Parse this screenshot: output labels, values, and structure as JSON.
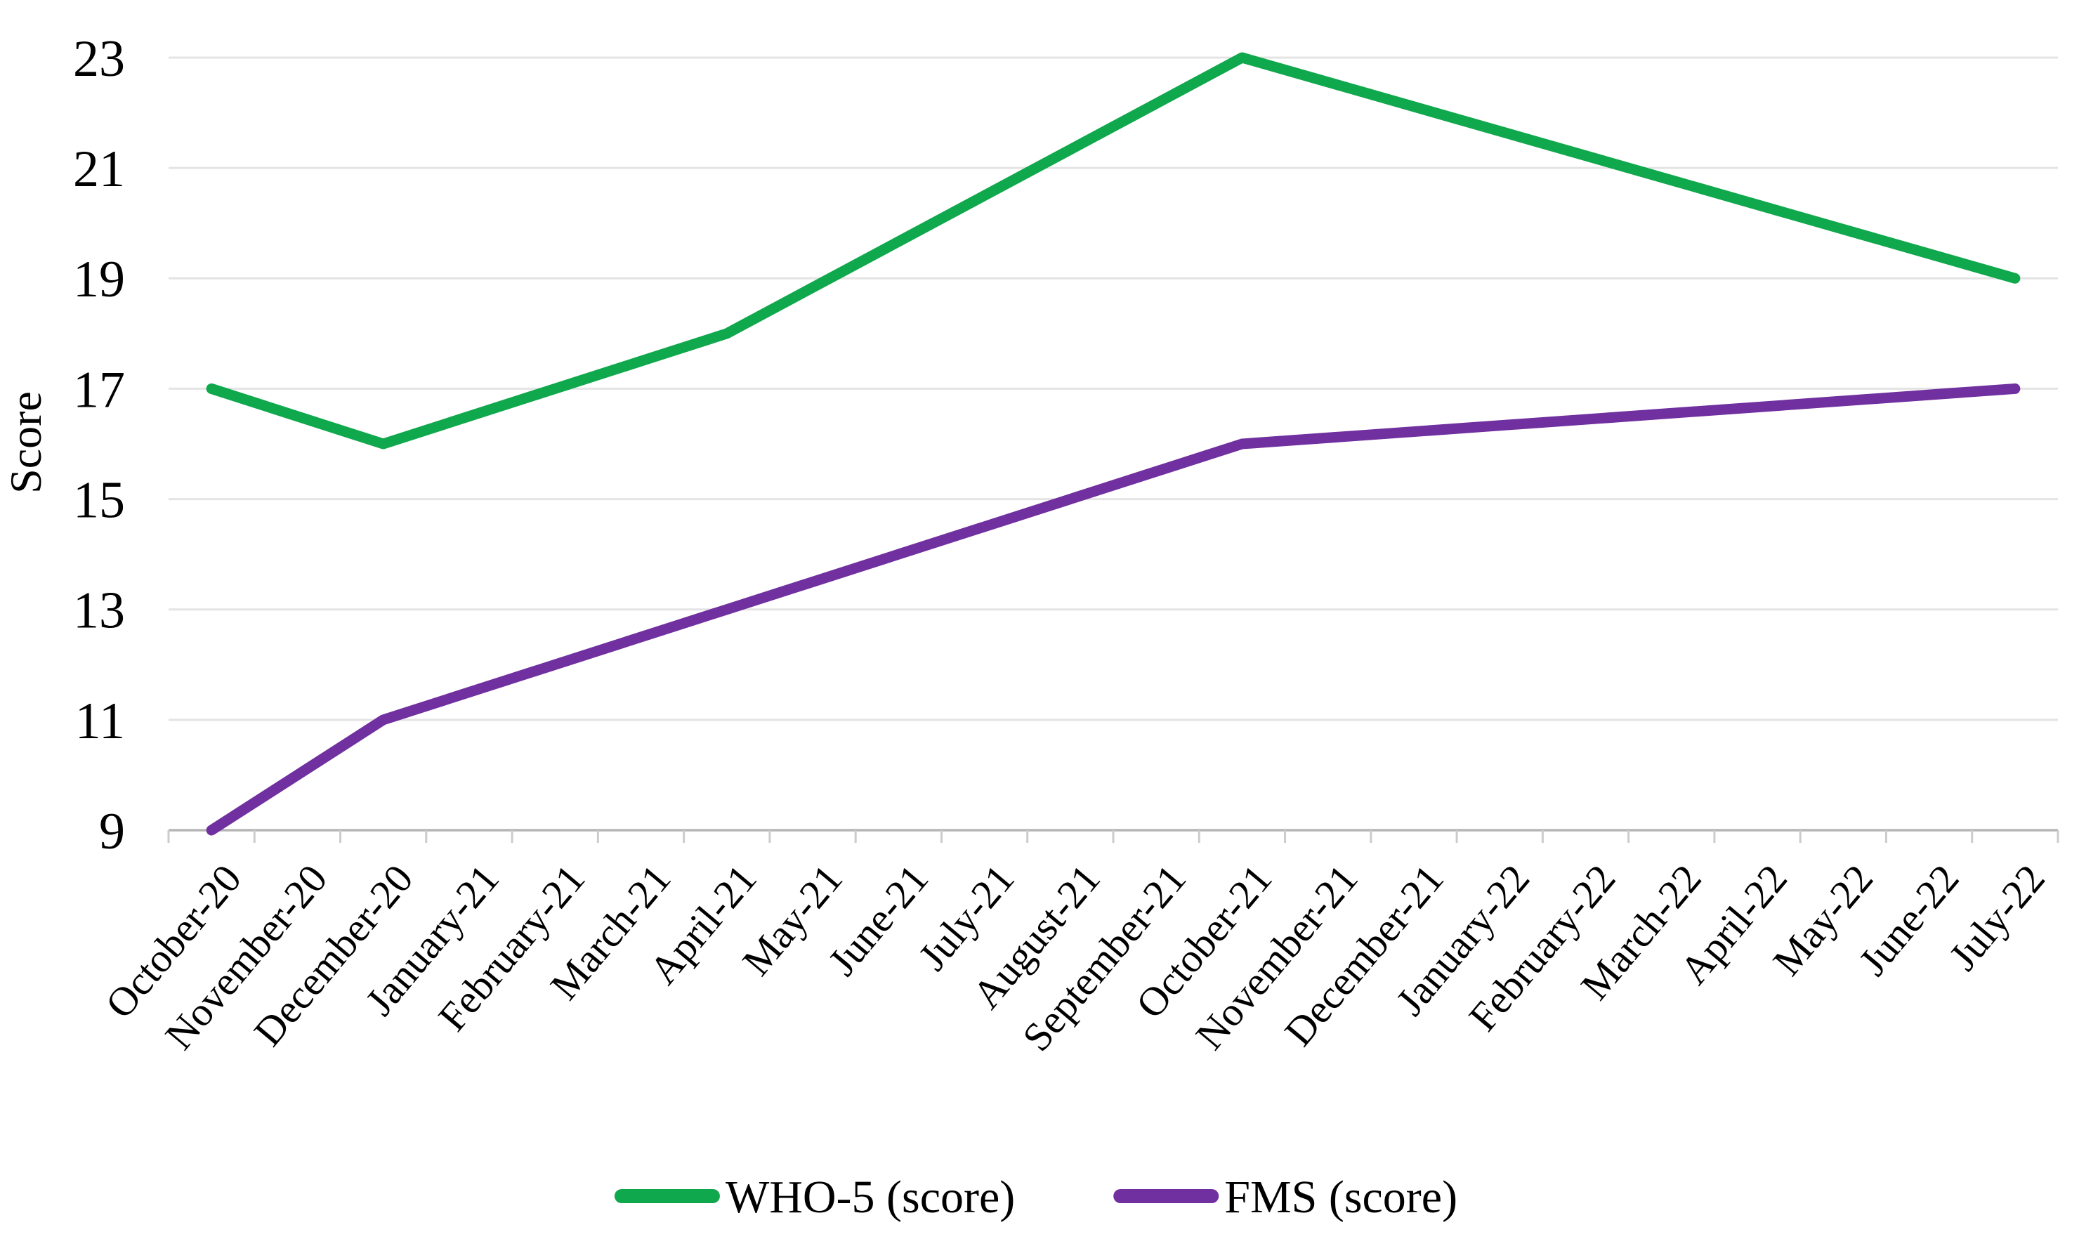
{
  "chart_data": {
    "type": "line",
    "title": "",
    "xlabel": "",
    "ylabel": "Score",
    "ylim": [
      9,
      23
    ],
    "yticks": [
      9,
      11,
      13,
      15,
      17,
      19,
      21,
      23
    ],
    "grid": true,
    "legend_position": "bottom",
    "x_tick_rotation": -50,
    "categories": [
      "October-20",
      "November-20",
      "December-20",
      "January-21",
      "February-21",
      "March-21",
      "April-21",
      "May-21",
      "June-21",
      "July-21",
      "August-21",
      "September-21",
      "October-21",
      "November-21",
      "December-21",
      "January-22",
      "February-22",
      "March-22",
      "April-22",
      "May-22",
      "June-22",
      "July-22"
    ],
    "series": [
      {
        "name": "WHO-5 (score)",
        "color": "#0fa84c",
        "values": [
          17,
          null,
          16,
          null,
          null,
          null,
          18,
          null,
          null,
          null,
          null,
          null,
          23,
          null,
          null,
          null,
          null,
          null,
          null,
          null,
          null,
          19
        ]
      },
      {
        "name": "FMS (score)",
        "color": "#7030a0",
        "values": [
          9,
          null,
          11,
          null,
          null,
          null,
          13,
          null,
          null,
          null,
          null,
          null,
          16,
          null,
          null,
          null,
          null,
          null,
          null,
          null,
          null,
          17
        ]
      }
    ]
  },
  "colors": {
    "background": "#ffffff",
    "gridline": "#e4e4e4",
    "axis_line": "#b5b5b5",
    "tick_mark": "#cccccc",
    "text": "#000000"
  }
}
